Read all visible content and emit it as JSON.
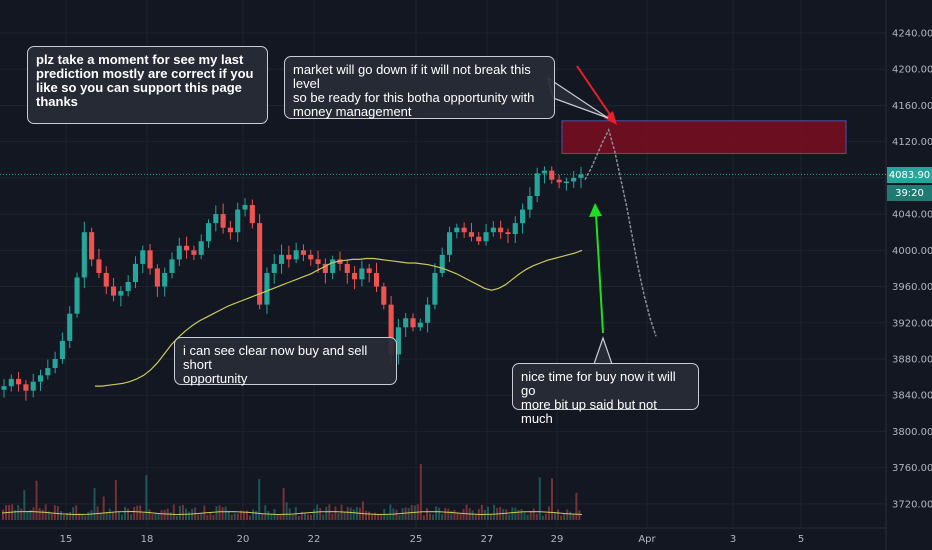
{
  "chart_data": {
    "type": "line",
    "title": "",
    "xlabel": "",
    "ylabel": "",
    "ylim": [
      3700,
      4260
    ],
    "x_tick_labels": [
      "15",
      "18",
      "20",
      "22",
      "25",
      "27",
      "29",
      "Apr",
      "3",
      "5"
    ],
    "y_tick_labels": [
      "4240.00",
      "4200.00",
      "4160.00",
      "4120.00",
      "4080.00",
      "4040.00",
      "4000.00",
      "3960.00",
      "3920.00",
      "3880.00",
      "3840.00",
      "3800.00",
      "3760.00",
      "3720.00"
    ],
    "current_price": "4083.90",
    "countdown": "39:20",
    "series": [
      {
        "values": [
          3850,
          3858,
          3852,
          3845,
          3855,
          3862,
          3870,
          3880,
          3900,
          3930,
          3970,
          4020,
          3990,
          3975,
          3960,
          3950,
          3955,
          3965,
          3985,
          4000,
          3980,
          3960,
          3975,
          3990,
          4005,
          4000,
          3995,
          4010,
          4030,
          4040,
          4025,
          4020,
          4045,
          4050,
          4030,
          3940,
          3975,
          3985,
          3995,
          3990,
          4000,
          3995,
          3990,
          3985,
          3975,
          3990,
          3985,
          3975,
          3968,
          3980,
          3975,
          3960,
          3940,
          3885,
          3915,
          3925,
          3915,
          3920,
          3940,
          3975,
          3995,
          4020,
          4025,
          4020,
          4015,
          4010,
          4020,
          4025,
          4020,
          4018,
          4030,
          4045,
          4060,
          4085,
          4088,
          4078,
          4075,
          4076,
          4080,
          4083.9
        ]
      },
      {
        "values": [
          3850,
          3850,
          3851,
          3852,
          3853,
          3855,
          3858,
          3862,
          3868,
          3876,
          3886,
          3896,
          3904,
          3911,
          3917,
          3922,
          3926,
          3930,
          3934,
          3938,
          3941,
          3944,
          3947,
          3950,
          3953,
          3956,
          3959,
          3962,
          3965,
          3968,
          3971,
          3974,
          3978,
          3982,
          3986,
          3988,
          3989,
          3990,
          3990,
          3991,
          3991,
          3990,
          3989,
          3988,
          3987,
          3986,
          3986,
          3985,
          3984,
          3982,
          3980,
          3977,
          3974,
          3970,
          3966,
          3962,
          3958,
          3956,
          3958,
          3962,
          3968,
          3974,
          3979,
          3983,
          3986,
          3989,
          3991,
          3993,
          3995,
          3997,
          4000
        ]
      },
      {
        "values": [
          4078,
          4090,
          4105,
          4120,
          4133,
          4110,
          4080,
          4050,
          4015,
          3980,
          3950,
          3925,
          3905
        ]
      }
    ],
    "zone": {
      "from": 4107,
      "to": 4143
    }
  },
  "annotations": {
    "note1": "plz take a moment for see my last\nprediction mostly are correct if you\nlike so you can support this page\nthanks",
    "note2": "market will go down if it will not break this level\nso be ready for this botha opportunity with\nmoney management",
    "note3": "i can see clear now buy and sell short\nopportunity",
    "note4": "nice time for buy now it will go\nmore bit up said but not much"
  },
  "colors": {
    "background": "#131722",
    "up": "#26a69a",
    "down": "#ef5350",
    "ma": "#c9c95a",
    "zone": "#7b0d1e",
    "arrow_red": "#e8202a",
    "arrow_green": "#1fe01f",
    "projection": "#8a8d96",
    "price_line": "#26a69a"
  }
}
